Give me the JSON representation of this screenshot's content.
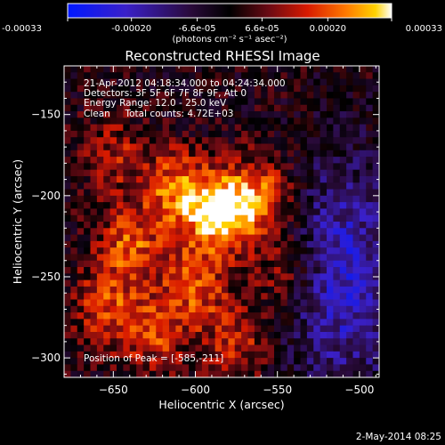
{
  "chart_data": {
    "type": "heatmap",
    "title": "Reconstructed RHESSI Image",
    "xlabel": "Heliocentric X (arcsec)",
    "ylabel": "Heliocentric Y (arcsec)",
    "xlim": [
      -680,
      -488
    ],
    "ylim": [
      -312,
      -120
    ],
    "x_ticks": [
      -650,
      -600,
      -550,
      -500
    ],
    "y_ticks": [
      -150,
      -200,
      -250,
      -300
    ],
    "colorbar": {
      "range": [
        -0.00033,
        0.00033
      ],
      "tick_values": [
        -0.00033,
        -0.0002,
        -6.6e-05,
        6.6e-05,
        0.0002,
        0.00033
      ],
      "tick_labels": [
        "-0.00033",
        "-0.00020",
        "-6.6e-05",
        "6.6e-05",
        "0.00020",
        "0.00033"
      ],
      "units": "(photons cm⁻² s⁻¹ asec⁻²)"
    },
    "annotations": [
      "21-Apr-2012 04:18:34.000 to 04:24:34.000",
      "Detectors: 3F 5F 6F 7F 8F 9F, Att 0",
      "Energy Range: 12.0 - 25.0 keV",
      "Clean     Total counts: 4.72E+03"
    ],
    "peak_label": "Position of Peak = [-585,-211]",
    "peak": [
      -585,
      -211
    ],
    "sources": [
      {
        "x": -585,
        "y": -211,
        "amp": 0.00033
      },
      {
        "x": -612,
        "y": -196,
        "amp": 0.00022
      },
      {
        "x": -560,
        "y": -200,
        "amp": 0.00021
      },
      {
        "x": -640,
        "y": -230,
        "amp": 0.00019
      },
      {
        "x": -600,
        "y": -255,
        "amp": 0.00018
      },
      {
        "x": -655,
        "y": -270,
        "amp": 0.00017
      },
      {
        "x": -625,
        "y": -285,
        "amp": 0.00016
      },
      {
        "x": -575,
        "y": -290,
        "amp": 0.00015
      },
      {
        "x": -545,
        "y": -245,
        "amp": 0.00014
      },
      {
        "x": -650,
        "y": -175,
        "amp": 0.00012
      }
    ],
    "negative_region": {
      "x": -510,
      "y": -250,
      "amp": -0.00022
    },
    "timestamp": "2-May-2014 08:25"
  }
}
